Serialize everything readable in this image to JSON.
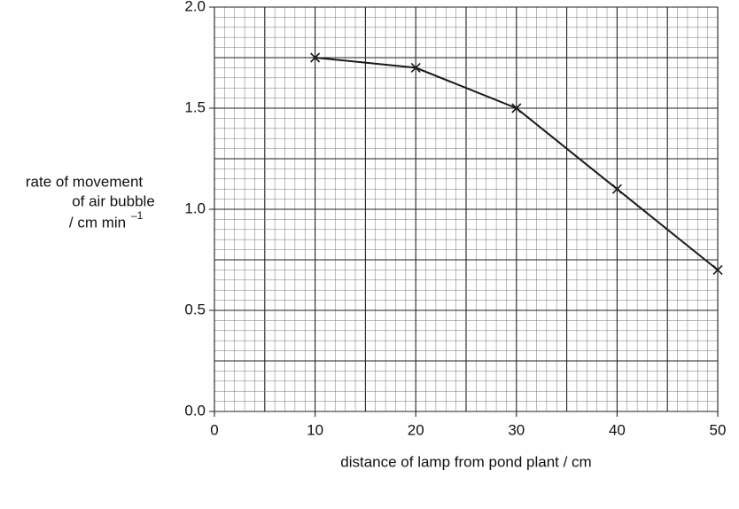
{
  "chart_data": {
    "type": "line",
    "x": [
      10,
      20,
      30,
      40,
      50
    ],
    "series": [
      {
        "color": "#1a1a1a",
        "values": [
          1.75,
          1.7,
          1.5,
          1.1,
          0.7
        ]
      }
    ],
    "xlim": [
      0,
      50
    ],
    "xticks": [
      0,
      10,
      20,
      30,
      40,
      50
    ],
    "ylim": [
      0,
      2
    ],
    "yticks": [
      {
        "value": 0,
        "label": "0.0"
      },
      0.5,
      {
        "value": 1,
        "label": "1.0"
      },
      1.5,
      {
        "value": 2,
        "label": "2.0"
      }
    ],
    "xlabel": "distance of lamp from pond plant / cm",
    "ylabel": [
      "rate of movement",
      "of air bubble",
      "/ cm min"
    ],
    "ylabel_superscript": "–1",
    "grid": true,
    "marker": "x"
  }
}
